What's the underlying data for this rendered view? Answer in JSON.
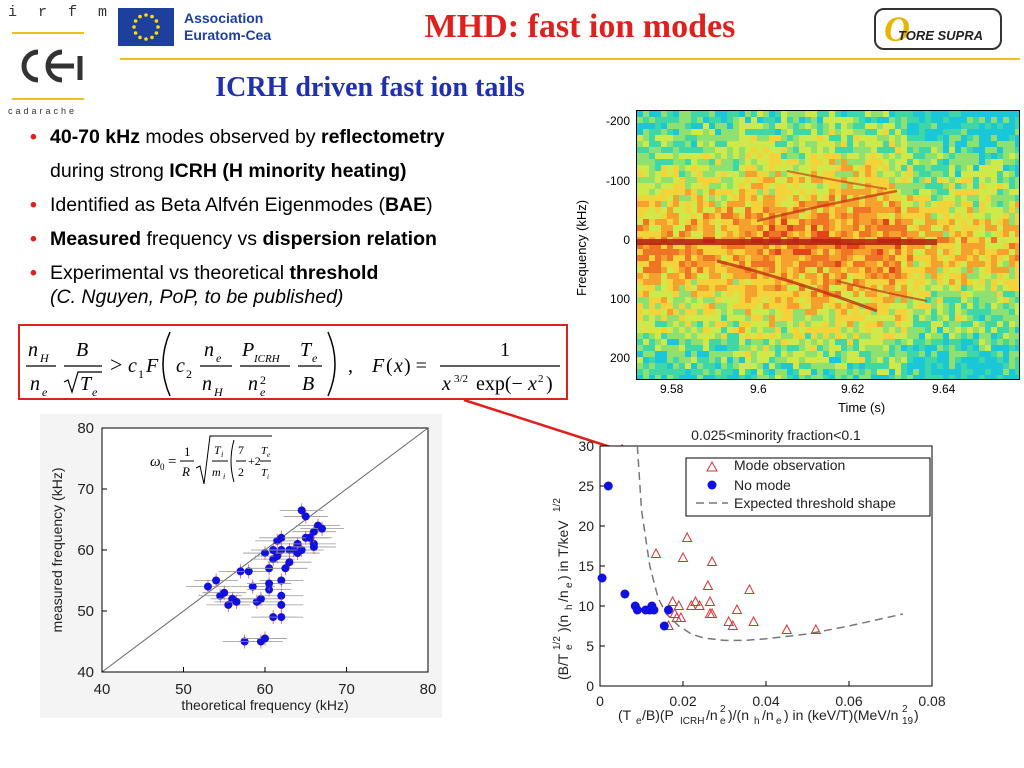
{
  "header": {
    "irfm": "i r f m",
    "cea": "cea",
    "cadarache": "cadarache",
    "association_line1": "Association",
    "association_line2": "Euratom-Cea",
    "title": "MHD: fast ion modes",
    "tore_supra": "TORE SUPRA"
  },
  "subtitle": "ICRH driven fast ion tails",
  "bullets": [
    {
      "parts": [
        {
          "t": "40-70 kHz",
          "b": true
        },
        {
          "t": " modes observed by ",
          "b": false
        },
        {
          "t": "reflectometry",
          "b": true
        }
      ]
    },
    {
      "parts": [
        {
          "t": "during strong ",
          "b": false
        },
        {
          "t": "ICRH (H minority heating)",
          "b": true
        }
      ],
      "cont": true
    },
    {
      "parts": [
        {
          "t": "Identified as Beta Alfvén Eigenmodes (",
          "b": false
        },
        {
          "t": "BAE",
          "b": true
        },
        {
          "t": ")",
          "b": false
        }
      ]
    },
    {
      "parts": [
        {
          "t": "Measured",
          "b": true
        },
        {
          "t": " frequency vs ",
          "b": false
        },
        {
          "t": "dispersion relation",
          "b": true
        }
      ]
    },
    {
      "parts": [
        {
          "t": "Experimental vs theoretical ",
          "b": false
        },
        {
          "t": "threshold",
          "b": true
        }
      ]
    }
  ],
  "citation": "(C. Nguyen, PoP, to be published)",
  "formula": {
    "n_H": "n",
    "B": "B",
    "ineq": "> c",
    "F": "F",
    "c2": "c",
    "F_def": "F(x) =",
    "one": "1",
    "denom": "exp(−x²)"
  },
  "spectrogram": {
    "ylabel": "Frequency (kHz)",
    "xlabel": "Time (s)",
    "yticks": [
      "-200",
      "-100",
      "0",
      "100",
      "200"
    ],
    "xticks": [
      "9.58",
      "9.6",
      "9.62",
      "9.64"
    ]
  },
  "freq_plot": {
    "xlabel": "theoretical frequency (kHz)",
    "ylabel": "measured frequency (kHz)",
    "xticks": [
      "40",
      "50",
      "60",
      "70",
      "80"
    ],
    "yticks": [
      "40",
      "50",
      "60",
      "70",
      "80"
    ],
    "formula_lhs": "ω",
    "formula_sub": "0",
    "formula_eq": "=",
    "formula_frac_num": "1",
    "formula_frac_den": "R"
  },
  "threshold_plot": {
    "title": "0.025<minority fraction<0.1",
    "xticks": [
      "0",
      "0.02",
      "0.04",
      "0.06",
      "0.08"
    ],
    "yticks": [
      "0",
      "5",
      "10",
      "15",
      "20",
      "25",
      "30"
    ],
    "legend": [
      "Mode observation",
      "No mode",
      "Expected threshold shape"
    ]
  },
  "chart_data": [
    {
      "type": "scatter",
      "title": "",
      "xlabel": "theoretical frequency (kHz)",
      "ylabel": "measured frequency (kHz)",
      "xlim": [
        40,
        80
      ],
      "ylim": [
        40,
        80
      ],
      "series": [
        {
          "points": [
            [
              53,
              54
            ],
            [
              54,
              55
            ],
            [
              54.5,
              52.5
            ],
            [
              55.5,
              51
            ],
            [
              56,
              52
            ],
            [
              57,
              56.5
            ],
            [
              57.5,
              45
            ],
            [
              58,
              56.5
            ],
            [
              58.5,
              54
            ],
            [
              59,
              51.5
            ],
            [
              59.5,
              52
            ],
            [
              59.5,
              45
            ],
            [
              60,
              59.5
            ],
            [
              60,
              45.5
            ],
            [
              60.5,
              57
            ],
            [
              60.5,
              53.5
            ],
            [
              61,
              58.5
            ],
            [
              61,
              60
            ],
            [
              61.5,
              61.5
            ],
            [
              61.5,
              59
            ],
            [
              62,
              62
            ],
            [
              62,
              60
            ],
            [
              62,
              55
            ],
            [
              62,
              52.5
            ],
            [
              62.5,
              57
            ],
            [
              63,
              60
            ],
            [
              63,
              58
            ],
            [
              63.5,
              60
            ],
            [
              64,
              61
            ],
            [
              64,
              59.5
            ],
            [
              64.5,
              66.5
            ],
            [
              64.5,
              60
            ],
            [
              65,
              65.5
            ],
            [
              65,
              62
            ],
            [
              65.5,
              62
            ],
            [
              66,
              63
            ],
            [
              66,
              61
            ],
            [
              66,
              60.5
            ],
            [
              66.5,
              64
            ],
            [
              67,
              63.5
            ],
            [
              62,
              51
            ],
            [
              61,
              49
            ],
            [
              60.5,
              54.5
            ],
            [
              56.5,
              51.5
            ],
            [
              55,
              53
            ],
            [
              62,
              49
            ]
          ]
        }
      ],
      "reference_line": [
        [
          40,
          40
        ],
        [
          80,
          80
        ]
      ]
    },
    {
      "type": "scatter",
      "title": "0.025<minority fraction<0.1",
      "xlim": [
        0,
        0.08
      ],
      "ylim": [
        0,
        30
      ],
      "series": [
        {
          "name": "Mode observation",
          "points": [
            [
              0.0135,
              16.5
            ],
            [
              0.0165,
              7.5
            ],
            [
              0.0175,
              10.5
            ],
            [
              0.018,
              9
            ],
            [
              0.0185,
              8.5
            ],
            [
              0.019,
              10
            ],
            [
              0.0195,
              8.5
            ],
            [
              0.02,
              16
            ],
            [
              0.021,
              18.5
            ],
            [
              0.022,
              10
            ],
            [
              0.023,
              10.5
            ],
            [
              0.024,
              10
            ],
            [
              0.026,
              12.5
            ],
            [
              0.0265,
              9
            ],
            [
              0.0265,
              10.5
            ],
            [
              0.027,
              15.5
            ],
            [
              0.027,
              9
            ],
            [
              0.031,
              8
            ],
            [
              0.032,
              7.5
            ],
            [
              0.033,
              9.5
            ],
            [
              0.036,
              12
            ],
            [
              0.037,
              8
            ],
            [
              0.045,
              7
            ],
            [
              0.052,
              7
            ]
          ]
        },
        {
          "name": "No mode",
          "points": [
            [
              0.0005,
              13.5
            ],
            [
              0.002,
              25
            ],
            [
              0.006,
              11.5
            ],
            [
              0.0085,
              10
            ],
            [
              0.009,
              9.5
            ],
            [
              0.011,
              9.5
            ],
            [
              0.012,
              9.5
            ],
            [
              0.0125,
              10
            ],
            [
              0.013,
              9.5
            ],
            [
              0.0155,
              7.5
            ],
            [
              0.0165,
              9.5
            ]
          ]
        },
        {
          "name": "Expected threshold shape",
          "line": [
            [
              0.009,
              30
            ],
            [
              0.01,
              22
            ],
            [
              0.012,
              15
            ],
            [
              0.014,
              11
            ],
            [
              0.016,
              9
            ],
            [
              0.019,
              7.5
            ],
            [
              0.022,
              6.5
            ],
            [
              0.025,
              6
            ],
            [
              0.03,
              5.7
            ],
            [
              0.035,
              5.7
            ],
            [
              0.04,
              5.9
            ],
            [
              0.05,
              6.5
            ],
            [
              0.06,
              7.5
            ],
            [
              0.073,
              9
            ]
          ]
        }
      ]
    }
  ],
  "colors": {
    "title_red": "#e0201c",
    "subtitle_blue": "#2030b0",
    "accent_yellow": "#f0c020",
    "point_blue": "#1010e0",
    "triangle_red": "#e03030"
  }
}
